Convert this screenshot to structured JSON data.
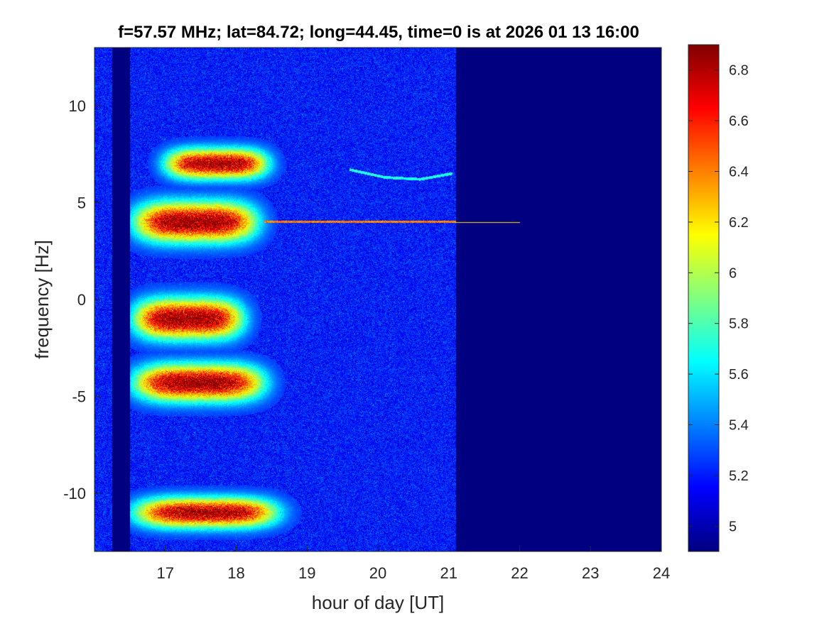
{
  "chart_data": {
    "type": "heatmap",
    "title": "f=57.57 MHz;  lat=84.72; long=44.45, time=0 is at 2026 01 13 16:00",
    "xlabel": "hour of day [UT]",
    "ylabel": "frequency [Hz]",
    "xlim": [
      16,
      24
    ],
    "ylim": [
      -13,
      13
    ],
    "x_ticks": [
      17,
      18,
      19,
      20,
      21,
      22,
      23,
      24
    ],
    "y_ticks": [
      -10,
      -5,
      0,
      5,
      10
    ],
    "x_tick_labels": [
      "17",
      "18",
      "19",
      "20",
      "21",
      "22",
      "23",
      "24"
    ],
    "y_tick_labels": [
      "-10",
      "-5",
      "0",
      "5",
      "10"
    ],
    "grid": false,
    "colormap": "jet",
    "colorbar": {
      "range": [
        4.9,
        6.9
      ],
      "ticks": [
        5,
        5.2,
        5.4,
        5.6,
        5.8,
        6,
        6.2,
        6.4,
        6.6,
        6.8
      ],
      "tick_labels": [
        "5",
        "5.2",
        "5.4",
        "5.6",
        "5.8",
        "6",
        "6.2",
        "6.4",
        "6.6",
        "6.8"
      ]
    },
    "data_extent_hours": [
      16,
      21.1
    ],
    "data_gap_hours": [
      16.25,
      16.5
    ],
    "background_level": 5.2,
    "features": [
      {
        "type": "blob",
        "x_range": [
          16.95,
          18.5
        ],
        "y_center": 7.0,
        "y_halfwidth": 0.9,
        "peak": 6.85
      },
      {
        "type": "blob",
        "x_range": [
          16.5,
          18.35
        ],
        "y_center": 4.0,
        "y_halfwidth": 1.2,
        "peak": 6.9
      },
      {
        "type": "blob",
        "x_range": [
          16.5,
          18.15
        ],
        "y_center": -1.0,
        "y_halfwidth": 1.2,
        "peak": 6.9
      },
      {
        "type": "blob",
        "x_range": [
          16.5,
          18.45
        ],
        "y_center": -4.3,
        "y_halfwidth": 1.1,
        "peak": 6.9
      },
      {
        "type": "blob",
        "x_range": [
          16.5,
          18.65
        ],
        "y_center": -11.0,
        "y_halfwidth": 0.9,
        "peak": 6.85
      },
      {
        "type": "line",
        "x_range": [
          18.4,
          22.0
        ],
        "y": 4.0,
        "level": 6.4
      },
      {
        "type": "trace",
        "points": [
          [
            19.6,
            6.7
          ],
          [
            20.1,
            6.3
          ],
          [
            20.6,
            6.2
          ],
          [
            21.05,
            6.5
          ]
        ],
        "level": 5.7
      }
    ]
  }
}
